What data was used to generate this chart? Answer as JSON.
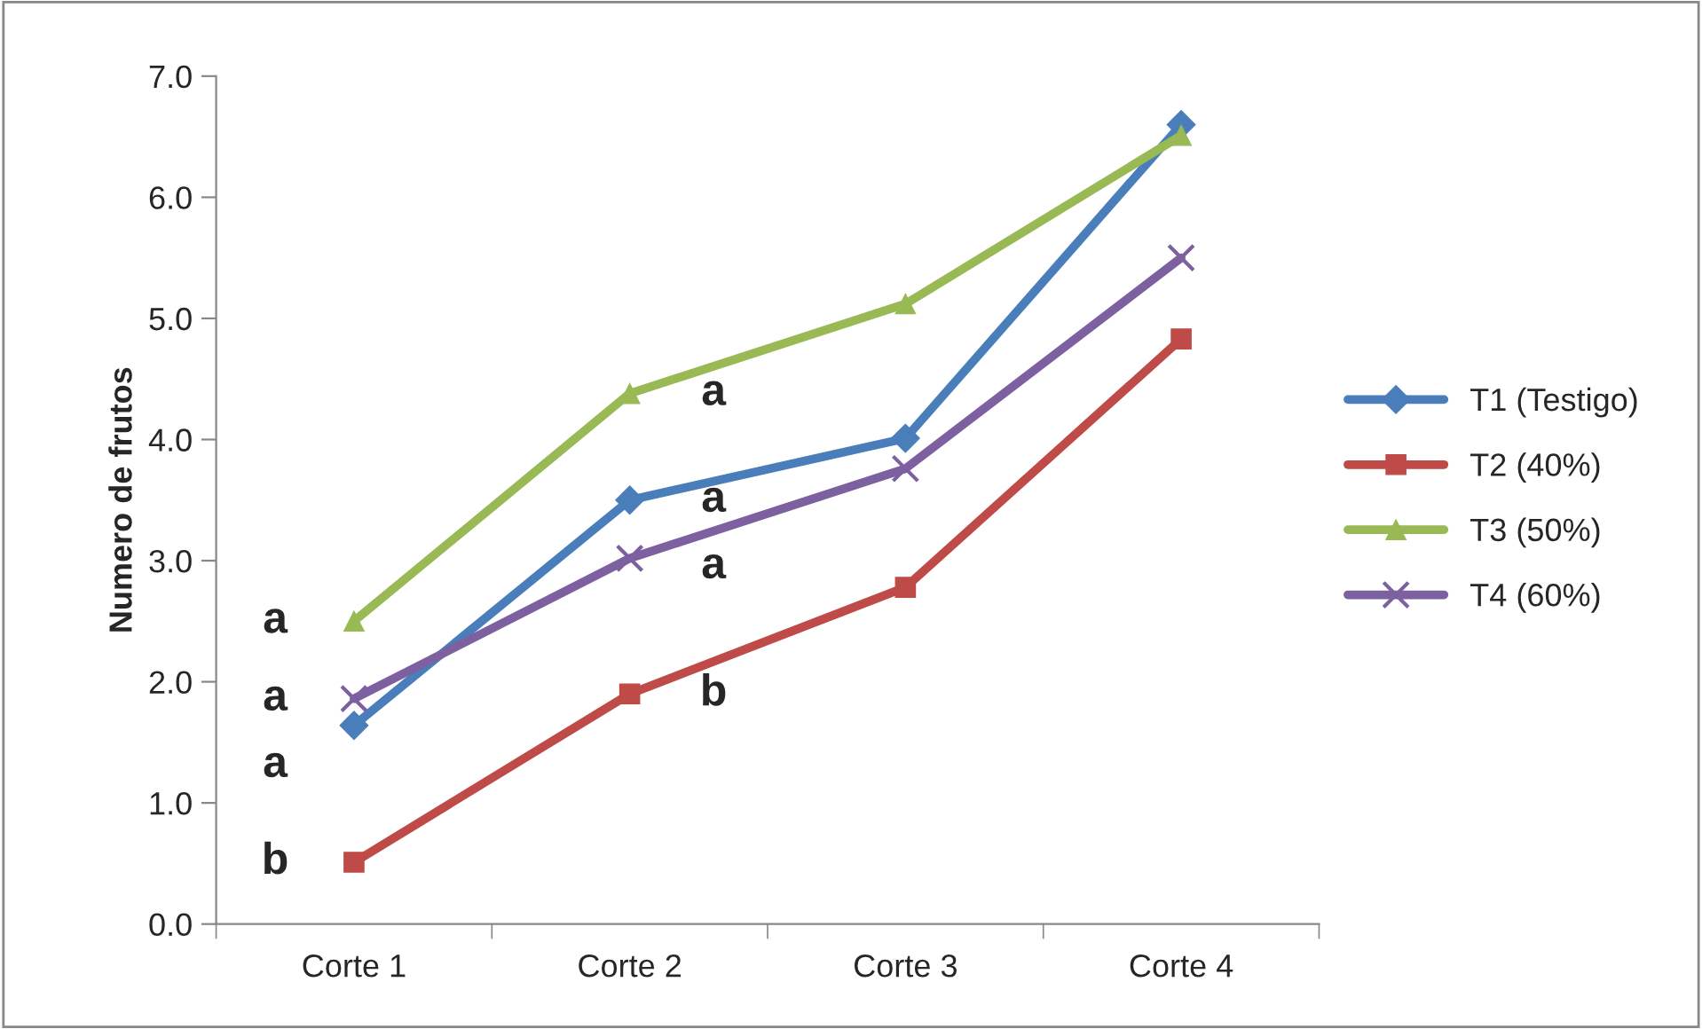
{
  "chart_data": {
    "type": "line",
    "ylabel": "Numero de frutos",
    "categories": [
      "Corte 1",
      "Corte 2",
      "Corte 3",
      "Corte 4"
    ],
    "series": [
      {
        "name": "T1 (Testigo)",
        "color": "#4a7ebb",
        "marker": "diamond",
        "values": [
          1.64,
          3.5,
          4.01,
          6.6
        ]
      },
      {
        "name": "T2 (40%)",
        "color": "#be4b48",
        "marker": "square",
        "values": [
          0.51,
          1.9,
          2.78,
          4.83
        ]
      },
      {
        "name": "T3 (50%)",
        "color": "#98b954",
        "marker": "triangle",
        "values": [
          2.5,
          4.38,
          5.12,
          6.51
        ]
      },
      {
        "name": "T4 (60%)",
        "color": "#7d60a0",
        "marker": "cross",
        "values": [
          1.86,
          3.02,
          3.76,
          5.5
        ]
      }
    ],
    "ylim": [
      0,
      7
    ],
    "yticks": [
      {
        "value": 0,
        "label": "0.0"
      },
      {
        "value": 1,
        "label": "1.0"
      },
      {
        "value": 2,
        "label": "2.0"
      },
      {
        "value": 3,
        "label": "3.0"
      },
      {
        "value": 4,
        "label": "4.0"
      },
      {
        "value": 5,
        "label": "5.0"
      },
      {
        "value": 6,
        "label": "6.0"
      },
      {
        "value": 7,
        "label": "7.0"
      }
    ],
    "grid": false,
    "legend": "right",
    "line_style": "solid",
    "annotations": [
      {
        "text": "a",
        "x": "Corte 1",
        "y": 2.5
      },
      {
        "text": "a",
        "x": "Corte 1",
        "y": 1.86
      },
      {
        "text": "a",
        "x": "Corte 1",
        "y": 1.64
      },
      {
        "text": "b",
        "x": "Corte 1",
        "y": 0.51
      },
      {
        "text": "a",
        "x": "Corte 2",
        "y": 4.38
      },
      {
        "text": "a",
        "x": "Corte 2",
        "y": 3.5
      },
      {
        "text": "a",
        "x": "Corte 2",
        "y": 3.02
      },
      {
        "text": "b",
        "x": "Corte 2",
        "y": 1.9
      }
    ]
  }
}
